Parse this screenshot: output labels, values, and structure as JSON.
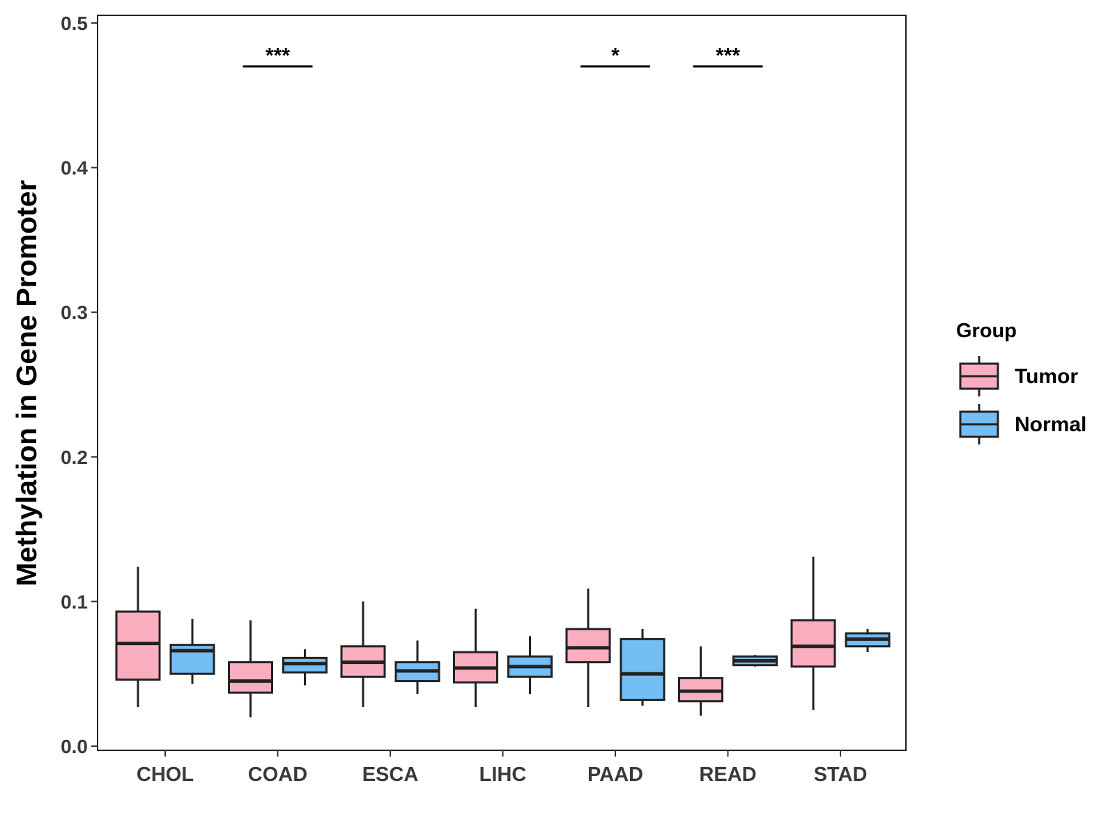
{
  "chart_data": {
    "type": "boxplot",
    "title": "",
    "xlabel": "",
    "ylabel": "Methylation in Gene Promoter",
    "ylim": [
      0,
      0.5
    ],
    "yticks": [
      0.0,
      0.1,
      0.2,
      0.3,
      0.4,
      0.5
    ],
    "ytick_labels": [
      "0.0",
      "0.1",
      "0.2",
      "0.3",
      "0.4",
      "0.5"
    ],
    "categories": [
      "CHOL",
      "COAD",
      "ESCA",
      "LIHC",
      "PAAD",
      "READ",
      "STAD"
    ],
    "legend": {
      "title": "Group",
      "placement": "right",
      "entries": [
        {
          "name": "Tumor",
          "color": "#F9AEC0"
        },
        {
          "name": "Normal",
          "color": "#74BDF5"
        }
      ]
    },
    "series": [
      {
        "name": "Tumor",
        "color": "#F9AEC0",
        "boxes": [
          {
            "category": "CHOL",
            "min": 0.027,
            "q1": 0.046,
            "median": 0.071,
            "q3": 0.093,
            "max": 0.124
          },
          {
            "category": "COAD",
            "min": 0.02,
            "q1": 0.037,
            "median": 0.045,
            "q3": 0.058,
            "max": 0.087
          },
          {
            "category": "ESCA",
            "min": 0.027,
            "q1": 0.048,
            "median": 0.058,
            "q3": 0.069,
            "max": 0.1
          },
          {
            "category": "LIHC",
            "min": 0.027,
            "q1": 0.044,
            "median": 0.054,
            "q3": 0.065,
            "max": 0.095
          },
          {
            "category": "PAAD",
            "min": 0.027,
            "q1": 0.058,
            "median": 0.068,
            "q3": 0.081,
            "max": 0.109
          },
          {
            "category": "READ",
            "min": 0.021,
            "q1": 0.031,
            "median": 0.038,
            "q3": 0.047,
            "max": 0.069
          },
          {
            "category": "STAD",
            "min": 0.025,
            "q1": 0.055,
            "median": 0.069,
            "q3": 0.087,
            "max": 0.131
          }
        ]
      },
      {
        "name": "Normal",
        "color": "#74BDF5",
        "boxes": [
          {
            "category": "CHOL",
            "min": 0.043,
            "q1": 0.05,
            "median": 0.066,
            "q3": 0.07,
            "max": 0.088
          },
          {
            "category": "COAD",
            "min": 0.042,
            "q1": 0.051,
            "median": 0.057,
            "q3": 0.061,
            "max": 0.067
          },
          {
            "category": "ESCA",
            "min": 0.036,
            "q1": 0.045,
            "median": 0.052,
            "q3": 0.058,
            "max": 0.073
          },
          {
            "category": "LIHC",
            "min": 0.036,
            "q1": 0.048,
            "median": 0.055,
            "q3": 0.062,
            "max": 0.076
          },
          {
            "category": "PAAD",
            "min": 0.028,
            "q1": 0.032,
            "median": 0.05,
            "q3": 0.074,
            "max": 0.081
          },
          {
            "category": "READ",
            "min": 0.055,
            "q1": 0.056,
            "median": 0.059,
            "q3": 0.062,
            "max": 0.063
          },
          {
            "category": "STAD",
            "min": 0.065,
            "q1": 0.069,
            "median": 0.074,
            "q3": 0.078,
            "max": 0.081
          }
        ]
      }
    ],
    "annotations": [
      {
        "category": "COAD",
        "label": "***",
        "y": 0.47
      },
      {
        "category": "PAAD",
        "label": "*",
        "y": 0.47
      },
      {
        "category": "READ",
        "label": "***",
        "y": 0.47
      }
    ]
  }
}
